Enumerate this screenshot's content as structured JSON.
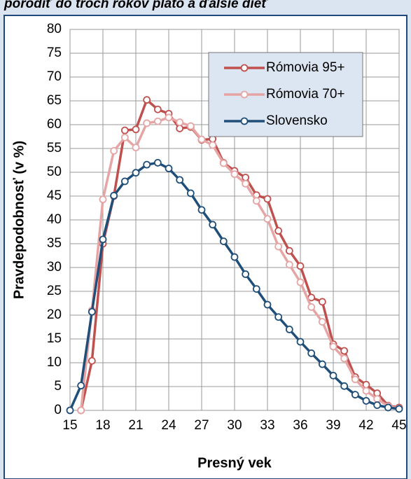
{
  "chart_data": {
    "type": "line",
    "title": "porodiť do troch rokov plato a ďalšie dieť",
    "xlabel": "Presný vek",
    "ylabel": "Pravdepodobnosť (v %)",
    "x": [
      15,
      16,
      17,
      18,
      19,
      20,
      21,
      22,
      23,
      24,
      25,
      26,
      27,
      28,
      29,
      30,
      31,
      32,
      33,
      34,
      35,
      36,
      37,
      38,
      39,
      40,
      41,
      42,
      43,
      44,
      45
    ],
    "series": [
      {
        "name": "Rómovia 95+",
        "color": "#c0504d",
        "values": [
          null,
          0,
          10.4,
          35,
          45,
          58.8,
          59,
          65.2,
          63.2,
          62.3,
          59.2,
          59.5,
          56.8,
          57,
          52,
          50.3,
          48.9,
          45.2,
          44.4,
          37.7,
          33.5,
          30.3,
          23.7,
          22.8,
          13.9,
          12.5,
          7,
          5.4,
          3.6,
          1,
          0.6
        ]
      },
      {
        "name": "Rómovia 70+",
        "color": "#e6a5a4",
        "values": [
          null,
          0,
          21,
          44.3,
          54.5,
          57.3,
          55.2,
          60.3,
          60.7,
          61.5,
          60.5,
          59.7,
          56.9,
          55.7,
          51.9,
          49.6,
          47.6,
          44,
          40.2,
          34.4,
          30.6,
          26.9,
          21.7,
          18.6,
          13.4,
          10.9,
          6.5,
          4.1,
          2.4,
          0.9,
          0.4
        ]
      },
      {
        "name": "Slovensko",
        "color": "#1f4e79",
        "values": [
          0,
          5.2,
          20.7,
          35.9,
          45.1,
          48.1,
          49.9,
          51.6,
          52,
          50.8,
          48.4,
          45.6,
          42.1,
          39,
          35.5,
          32.2,
          28.6,
          25.5,
          22.2,
          19.6,
          17,
          14.4,
          12,
          9.7,
          7.3,
          5.1,
          3.3,
          2,
          1.1,
          0.6,
          0.3
        ]
      }
    ],
    "xlim": [
      15,
      45
    ],
    "xticks": [
      15,
      18,
      21,
      24,
      27,
      30,
      33,
      36,
      39,
      42,
      45
    ],
    "ylim": [
      0,
      80
    ],
    "yticks": [
      0,
      5,
      10,
      15,
      20,
      25,
      30,
      35,
      40,
      45,
      50,
      55,
      60,
      65,
      70,
      75,
      80
    ],
    "grid": true,
    "legend": "top-right"
  }
}
